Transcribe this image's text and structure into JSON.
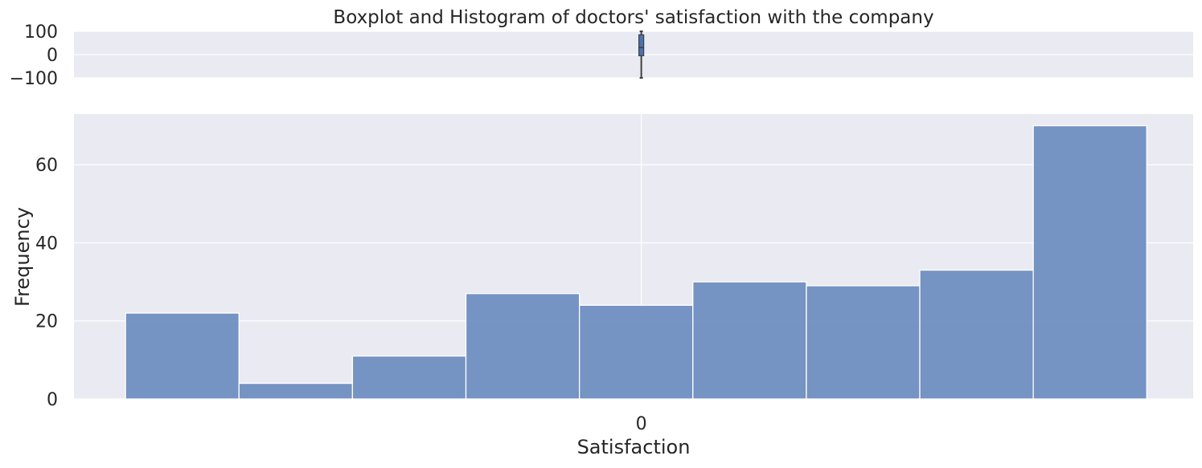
{
  "chart_data": {
    "type": "bar",
    "title": "Boxplot and Histogram of doctors' satisfaction with the company",
    "xlabel": "Satisfaction",
    "ylabel": "Frequency",
    "style": {
      "panel_background": "#eaeaf2",
      "bar_color": "#6a8bbf",
      "box_color": "#4c72b0",
      "whisker_color": "#3f3f3f",
      "grid_color": "#ffffff"
    },
    "boxplot": {
      "y_ticks": [
        100,
        0,
        -100
      ],
      "y_tick_labels": [
        "100",
        "0",
        "−100"
      ],
      "ylim": [
        -100,
        100
      ],
      "whisker_low": -100,
      "q1": -5,
      "median": 30,
      "q3": 85,
      "whisker_high": 100
    },
    "histogram": {
      "grid": true,
      "ylim": [
        0,
        73
      ],
      "y_ticks": [
        0,
        20,
        40,
        60
      ],
      "x_ticks": [
        0
      ],
      "x_tick_labels": [
        "0"
      ],
      "bins": [
        {
          "x0": -100,
          "x1": -78,
          "count": 22
        },
        {
          "x0": -78,
          "x1": -56,
          "count": 4
        },
        {
          "x0": -56,
          "x1": -34,
          "count": 11
        },
        {
          "x0": -34,
          "x1": -12,
          "count": 27
        },
        {
          "x0": -12,
          "x1": 10,
          "count": 24
        },
        {
          "x0": 10,
          "x1": 32,
          "count": 30
        },
        {
          "x0": 32,
          "x1": 54,
          "count": 29
        },
        {
          "x0": 54,
          "x1": 76,
          "count": 33
        },
        {
          "x0": 76,
          "x1": 98,
          "count": 70
        }
      ],
      "xlim": [
        -110,
        107
      ]
    }
  }
}
